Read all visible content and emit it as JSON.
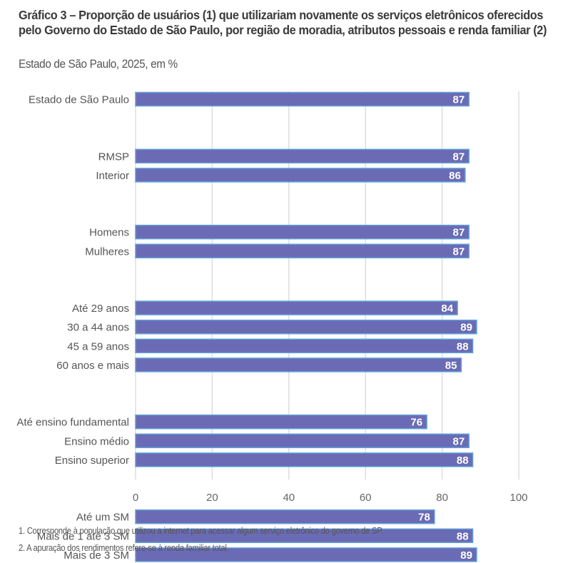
{
  "title": "Gráfico 3 – Proporção de usuários (1) que utilizariam novamente os serviços eletrônicos oferecidos pelo Governo do Estado de São Paulo, por região de moradia, atributos pessoais e renda familiar (2)",
  "subtitle": "Estado de São Paulo, 2025, em %",
  "footnotes": [
    "1. Corresponde à população que utilizou a internet para acessar algum serviço eletrônico do governo de SP.",
    "2. A apuração dos rendimentos refere-se à renda familiar total."
  ],
  "colors": {
    "bar_fill": "#6b6bb5",
    "bar_border": "#5fa0d8",
    "grid": "#dddddd",
    "value_text": "#ffffff"
  },
  "chart_data": {
    "type": "bar",
    "orientation": "horizontal",
    "title": "Gráfico 3 – Proporção de usuários (1) que utilizariam novamente os serviços eletrônicos oferecidos pelo Governo do Estado de São Paulo, por região de moradia, atributos pessoais e renda familiar (2)",
    "subtitle": "Estado de São Paulo, 2025, em %",
    "xlabel": "",
    "ylabel": "",
    "xlim": [
      0,
      100
    ],
    "xticks": [
      0,
      20,
      40,
      60,
      80,
      100
    ],
    "grid": true,
    "legend": "none",
    "groups": [
      {
        "categories": [
          "Estado de São Paulo"
        ],
        "values": [
          87
        ]
      },
      {
        "categories": [
          "RMSP",
          "Interior"
        ],
        "values": [
          87,
          86
        ]
      },
      {
        "categories": [
          "Homens",
          "Mulheres"
        ],
        "values": [
          87,
          87
        ]
      },
      {
        "categories": [
          "Até 29 anos",
          "30 a 44 anos",
          "45 a 59 anos",
          "60 anos e mais"
        ],
        "values": [
          84,
          89,
          88,
          85
        ]
      },
      {
        "categories": [
          "Até ensino fundamental",
          "Ensino médio",
          "Ensino superior"
        ],
        "values": [
          76,
          87,
          88
        ]
      },
      {
        "categories": [
          "Até um SM",
          "Mais de 1 até 3 SM",
          "Mais de 3 SM"
        ],
        "values": [
          78,
          88,
          89
        ]
      }
    ],
    "categories": [
      "Estado de São Paulo",
      "RMSP",
      "Interior",
      "Homens",
      "Mulheres",
      "Até 29 anos",
      "30 a 44 anos",
      "45 a 59 anos",
      "60 anos e mais",
      "Até ensino fundamental",
      "Ensino médio",
      "Ensino superior",
      "Até um SM",
      "Mais de 1 até 3 SM",
      "Mais de 3 SM"
    ],
    "values": [
      87,
      87,
      86,
      87,
      87,
      84,
      89,
      88,
      85,
      76,
      87,
      88,
      78,
      88,
      89
    ]
  }
}
